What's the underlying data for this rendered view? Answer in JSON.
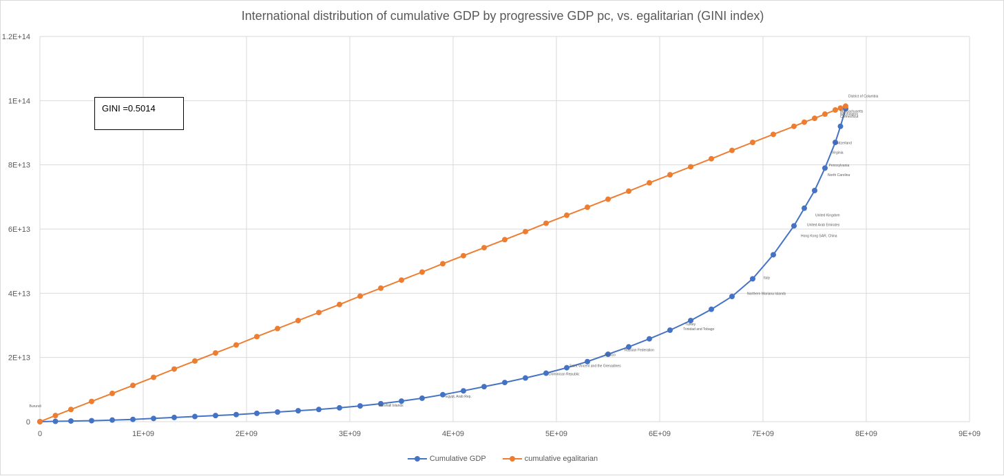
{
  "chart_data": {
    "type": "line",
    "title": "International distribution of cumulative GDP by progressive GDP pc, vs. egalitarian (GINI index)",
    "xlabel": "",
    "ylabel": "",
    "xlim": [
      0,
      9000000000
    ],
    "ylim": [
      0,
      120000000000000
    ],
    "x_ticks": [
      "0",
      "1E+09",
      "2E+09",
      "3E+09",
      "4E+09",
      "5E+09",
      "6E+09",
      "7E+09",
      "8E+09",
      "9E+09"
    ],
    "y_ticks": [
      "0",
      "2E+13",
      "4E+13",
      "6E+13",
      "8E+13",
      "1E+14",
      "1.2E+14"
    ],
    "grid": true,
    "legend_position": "bottom",
    "annotation": "GINI =0.5014",
    "series": [
      {
        "name": "Cumulative GDP",
        "color": "#4472c4",
        "x": [
          0,
          150000000,
          300000000,
          500000000,
          700000000,
          900000000,
          1100000000,
          1300000000,
          1500000000,
          1700000000,
          1900000000,
          2100000000,
          2300000000,
          2500000000,
          2700000000,
          2900000000,
          3100000000,
          3300000000,
          3500000000,
          3700000000,
          3900000000,
          4100000000,
          4300000000,
          4500000000,
          4700000000,
          4900000000,
          5100000000,
          5300000000,
          5500000000,
          5700000000,
          5900000000,
          6100000000,
          6300000000,
          6500000000,
          6700000000,
          6900000000,
          7100000000,
          7300000000,
          7400000000,
          7500000000,
          7600000000,
          7700000000,
          7750000000,
          7800000000
        ],
        "values": [
          0,
          100000000000,
          200000000000,
          300000000000,
          500000000000,
          700000000000,
          1000000000000,
          1300000000000,
          1600000000000,
          1900000000000,
          2200000000000,
          2600000000000,
          3000000000000,
          3400000000000,
          3800000000000,
          4300000000000,
          4900000000000,
          5600000000000,
          6400000000000,
          7300000000000,
          8400000000000,
          9600000000000,
          10900000000000,
          12200000000000,
          13600000000000,
          15100000000000,
          16800000000000,
          18700000000000,
          21000000000000,
          23300000000000,
          25800000000000,
          28500000000000,
          31500000000000,
          35000000000000,
          39000000000000,
          44500000000000,
          52000000000000,
          61000000000000,
          66500000000000,
          72000000000000,
          79000000000000,
          87000000000000,
          92000000000000,
          97500000000000
        ]
      },
      {
        "name": "cumulative egalitarian",
        "color": "#ed7d31",
        "x": [
          0,
          150000000,
          300000000,
          500000000,
          700000000,
          900000000,
          1100000000,
          1300000000,
          1500000000,
          1700000000,
          1900000000,
          2100000000,
          2300000000,
          2500000000,
          2700000000,
          2900000000,
          3100000000,
          3300000000,
          3500000000,
          3700000000,
          3900000000,
          4100000000,
          4300000000,
          4500000000,
          4700000000,
          4900000000,
          5100000000,
          5300000000,
          5500000000,
          5700000000,
          5900000000,
          6100000000,
          6300000000,
          6500000000,
          6700000000,
          6900000000,
          7100000000,
          7300000000,
          7400000000,
          7500000000,
          7600000000,
          7700000000,
          7750000000,
          7800000000
        ],
        "values": [
          0,
          1900000000000,
          3800000000000,
          6300000000000,
          8800000000000,
          11300000000000,
          13800000000000,
          16400000000000,
          18900000000000,
          21400000000000,
          23900000000000,
          26500000000000,
          29000000000000,
          31500000000000,
          34000000000000,
          36500000000000,
          39100000000000,
          41600000000000,
          44100000000000,
          46600000000000,
          49200000000000,
          51700000000000,
          54200000000000,
          56700000000000,
          59200000000000,
          61800000000000,
          64300000000000,
          66800000000000,
          69300000000000,
          71800000000000,
          74400000000000,
          76900000000000,
          79400000000000,
          81900000000000,
          84500000000000,
          87000000000000,
          89500000000000,
          92000000000000,
          93300000000000,
          94500000000000,
          95800000000000,
          97100000000000,
          97700000000000,
          98300000000000
        ]
      }
    ],
    "point_labels": [
      {
        "text": "District of Columbia",
        "x": 7800000000,
        "y": 101000000000000
      },
      {
        "text": "Massachusetts",
        "x": 7720000000,
        "y": 96300000000000
      },
      {
        "text": "Washington",
        "x": 7720000000,
        "y": 95500000000000
      },
      {
        "text": "Connecticut",
        "x": 7720000000,
        "y": 94700000000000
      },
      {
        "text": "Switzerland",
        "x": 7660000000,
        "y": 86500000000000
      },
      {
        "text": "Virginia",
        "x": 7640000000,
        "y": 83500000000000
      },
      {
        "text": "Pennsylvania",
        "x": 7610000000,
        "y": 79500000000000
      },
      {
        "text": "North Carolina",
        "x": 7600000000,
        "y": 76500000000000
      },
      {
        "text": "United Kingdom",
        "x": 7480000000,
        "y": 64000000000000
      },
      {
        "text": "United Arab Emirates",
        "x": 7400000000,
        "y": 61000000000000
      },
      {
        "text": "Hong Kong SAR, China",
        "x": 7340000000,
        "y": 57500000000000
      },
      {
        "text": "Italy",
        "x": 6980000000,
        "y": 44500000000000
      },
      {
        "text": "Northern Mariana Islands",
        "x": 6820000000,
        "y": 39500000000000
      },
      {
        "text": "Trinidad and Tobago",
        "x": 6200000000,
        "y": 28500000000000
      },
      {
        "text": "Turkey",
        "x": 6220000000,
        "y": 30000000000000
      },
      {
        "text": "Russian Federation",
        "x": 5630000000,
        "y": 22000000000000
      },
      {
        "text": "Mexico",
        "x": 5440000000,
        "y": 20500000000000
      },
      {
        "text": "Saint Vincent and the Grenadines",
        "x": 5100000000,
        "y": 17000000000000
      },
      {
        "text": "Dominican Republic",
        "x": 4900000000,
        "y": 14500000000000
      },
      {
        "text": "Egypt, Arab Rep.",
        "x": 3900000000,
        "y": 7500000000000
      },
      {
        "text": "Marshall Islands",
        "x": 3250000000,
        "y": 4700000000000
      },
      {
        "text": "Burundi",
        "x": -130000000,
        "y": 4500000000000
      }
    ]
  },
  "legend": {
    "item1": "Cumulative GDP",
    "item2": "cumulative egalitarian"
  }
}
